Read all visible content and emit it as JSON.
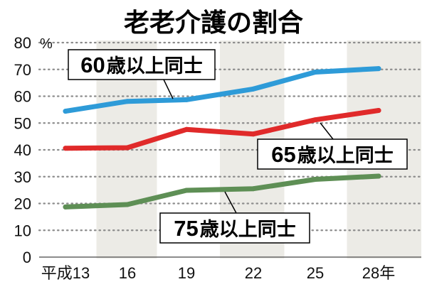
{
  "chart_data": {
    "type": "line",
    "title": "老老介護の割合",
    "y_unit": "%",
    "ylim": [
      0,
      80
    ],
    "y_ticks": [
      0,
      10,
      20,
      30,
      40,
      50,
      60,
      70,
      80
    ],
    "x": [
      "H13",
      "H16",
      "H19",
      "H22",
      "H25",
      "H28"
    ],
    "x_tick_labels": [
      "平成13",
      "16",
      "19",
      "22",
      "25",
      "28年"
    ],
    "grid": true,
    "series": [
      {
        "name": "60歳以上同士",
        "name_number": "60",
        "name_rest": "歳以上同士",
        "color": "#2e9bd8",
        "values": [
          54.4,
          58.1,
          58.7,
          62.7,
          69.0,
          70.3
        ]
      },
      {
        "name": "65歳以上同士",
        "name_number": "65",
        "name_rest": "歳以上同士",
        "color": "#e02a2a",
        "values": [
          40.6,
          40.8,
          47.6,
          45.9,
          51.2,
          54.7
        ]
      },
      {
        "name": "75歳以上同士",
        "name_number": "75",
        "name_rest": "歳以上同士",
        "color": "#5e8f55",
        "values": [
          18.7,
          19.6,
          24.9,
          25.5,
          29.0,
          30.2
        ]
      }
    ]
  }
}
